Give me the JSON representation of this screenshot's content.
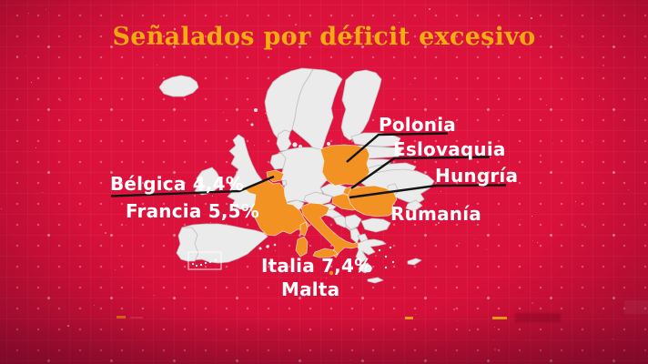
{
  "title": "Señalados por déficit excesivo",
  "map_labels": {
    "belgica": "Bélgica 4,4%",
    "francia": "Francia 5,5%",
    "polonia": "Polonia",
    "eslovaquia": "Eslovaquia",
    "hungria": "Hungría",
    "rumania": "Rumanía",
    "italia": "Italia 7,4%",
    "malta": "Malta"
  },
  "highlighted_countries": [
    {
      "name": "Bélgica",
      "deficit": "4,4%"
    },
    {
      "name": "Francia",
      "deficit": "5,5%"
    },
    {
      "name": "Italia",
      "deficit": "7,4%"
    },
    {
      "name": "Malta"
    },
    {
      "name": "Polonia"
    },
    {
      "name": "Eslovaquia"
    },
    {
      "name": "Hungría"
    },
    {
      "name": "Rumanía"
    }
  ],
  "colors": {
    "background_center": "#e21440",
    "background_edge": "#871030",
    "title": "#f5ac10",
    "label": "#ffffff",
    "pointer_line": "#141414",
    "country_default": "#ebebeb",
    "country_border": "#bfbfbf",
    "country_highlight": "#f29222",
    "glitch_yellow": "#f5ac10",
    "glitch_orange": "#e87b10",
    "glitch_red": "#e8314e"
  }
}
